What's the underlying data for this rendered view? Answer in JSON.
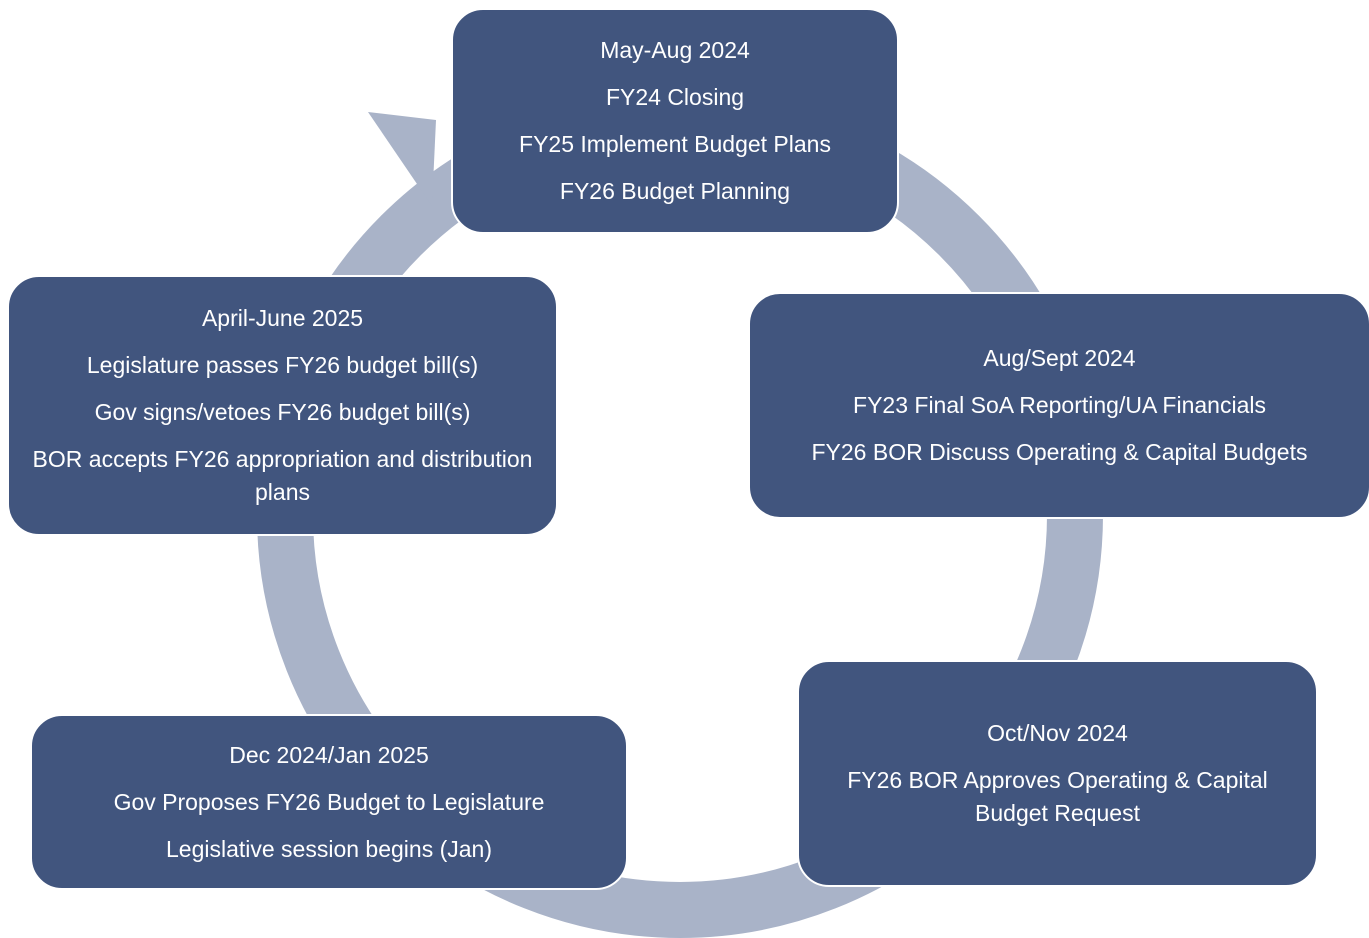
{
  "nodes": [
    {
      "lines": [
        "May-Aug 2024",
        "FY24 Closing",
        "FY25 Implement Budget Plans",
        "FY26 Budget Planning"
      ]
    },
    {
      "lines": [
        "Aug/Sept 2024",
        "FY23 Final SoA Reporting/UA Financials",
        "FY26 BOR Discuss Operating & Capital Budgets"
      ]
    },
    {
      "lines": [
        "Oct/Nov 2024",
        "FY26 BOR Approves Operating & Capital Budget Request"
      ]
    },
    {
      "lines": [
        "Dec 2024/Jan 2025",
        "Gov Proposes FY26 Budget to Legislature",
        "Legislative session begins (Jan)"
      ]
    },
    {
      "lines": [
        "April-June 2025",
        "Legislature passes FY26  budget bill(s)",
        "Gov signs/vetoes FY26 budget bill(s)",
        "BOR accepts FY26 appropriation and distribution plans"
      ]
    }
  ]
}
